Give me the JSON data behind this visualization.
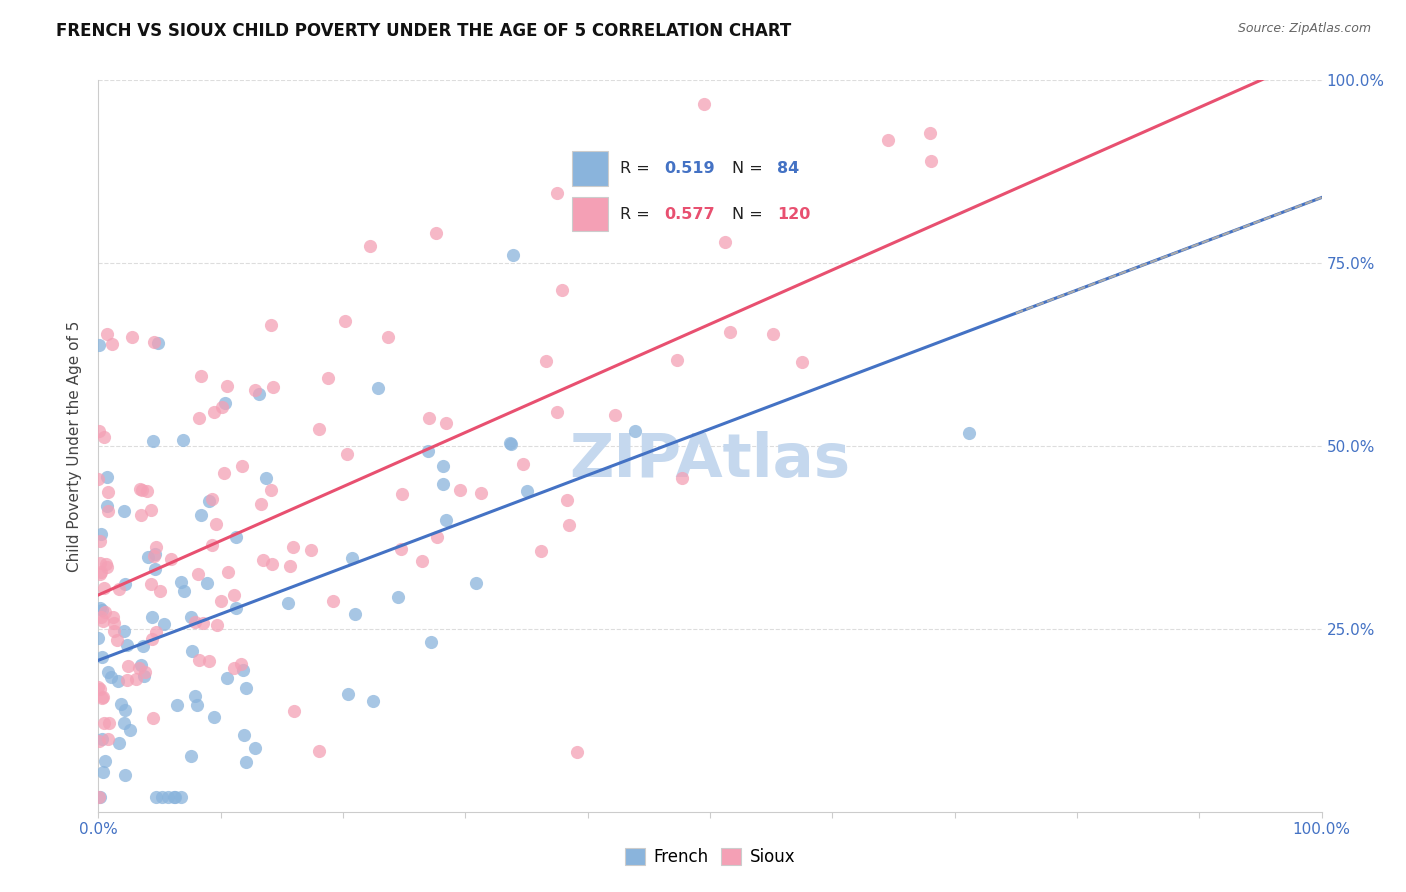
{
  "title": "FRENCH VS SIOUX CHILD POVERTY UNDER THE AGE OF 5 CORRELATION CHART",
  "source": "Source: ZipAtlas.com",
  "ylabel": "Child Poverty Under the Age of 5",
  "french_R": 0.519,
  "french_N": 84,
  "sioux_R": 0.577,
  "sioux_N": 120,
  "french_color": "#8AB4DC",
  "sioux_color": "#F4A0B5",
  "french_line_color": "#4472C4",
  "sioux_line_color": "#E85070",
  "background_color": "#FFFFFF",
  "grid_color": "#DDDDDD",
  "watermark_color": "#C5D8EE",
  "right_tick_color": "#4472C4",
  "bottom_tick_color": "#4472C4",
  "legend_border_color": "#CCCCCC"
}
